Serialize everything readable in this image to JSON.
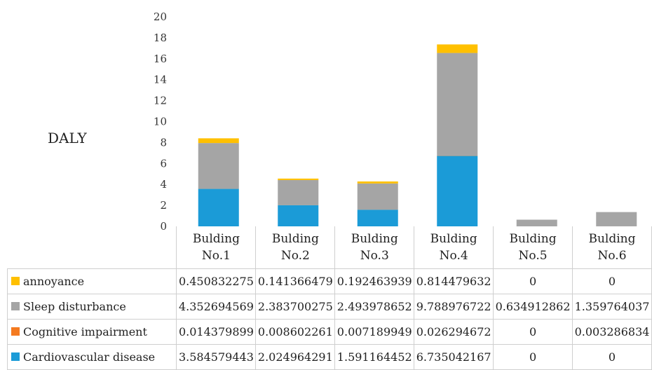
{
  "chart_data": {
    "type": "bar",
    "stacked": true,
    "ylabel": "DALY",
    "ylim": [
      0,
      20
    ],
    "yticks": [
      0,
      2,
      4,
      6,
      8,
      10,
      12,
      14,
      16,
      18,
      20
    ],
    "grid": false,
    "categories": [
      [
        "Bulding",
        "No.1"
      ],
      [
        "Bulding",
        "No.2"
      ],
      [
        "Bulding",
        "No.3"
      ],
      [
        "Bulding",
        "No.4"
      ],
      [
        "Bulding",
        "No.5"
      ],
      [
        "Bulding",
        "No.6"
      ]
    ],
    "series": [
      {
        "name": "Cardiovascular disease",
        "color": "#1b9bd7",
        "values": [
          3.584579443,
          2.024964291,
          1.591164452,
          6.735042167,
          0,
          0
        ],
        "labels": [
          "3.584579443",
          "2.024964291",
          "1.591164452",
          "6.735042167",
          "0",
          "0"
        ]
      },
      {
        "name": "Cognitive impairment",
        "color": "#f47a20",
        "values": [
          0.014379899,
          0.008602261,
          0.007189949,
          0.026294672,
          0,
          0.003286834
        ],
        "labels": [
          "0.014379899",
          "0.008602261",
          "0.007189949",
          "0.026294672",
          "0",
          "0.003286834"
        ]
      },
      {
        "name": "Sleep disturbance",
        "color": "#a5a5a5",
        "values": [
          4.352694569,
          2.383700275,
          2.493978652,
          9.788976722,
          0.634912862,
          1.359764037
        ],
        "labels": [
          "4.352694569",
          "2.383700275",
          "2.493978652",
          "9.788976722",
          "0.634912862",
          "1.359764037"
        ]
      },
      {
        "name": "annoyance",
        "color": "#ffc000",
        "values": [
          0.450832275,
          0.141366479,
          0.192463939,
          0.814479632,
          0,
          0
        ],
        "labels": [
          "0.450832275",
          "0.141366479",
          "0.192463939",
          "0.814479632",
          "0",
          "0"
        ]
      }
    ],
    "table_row_order": [
      "annoyance",
      "Sleep disturbance",
      "Cognitive impairment",
      "Cardiovascular disease"
    ]
  }
}
